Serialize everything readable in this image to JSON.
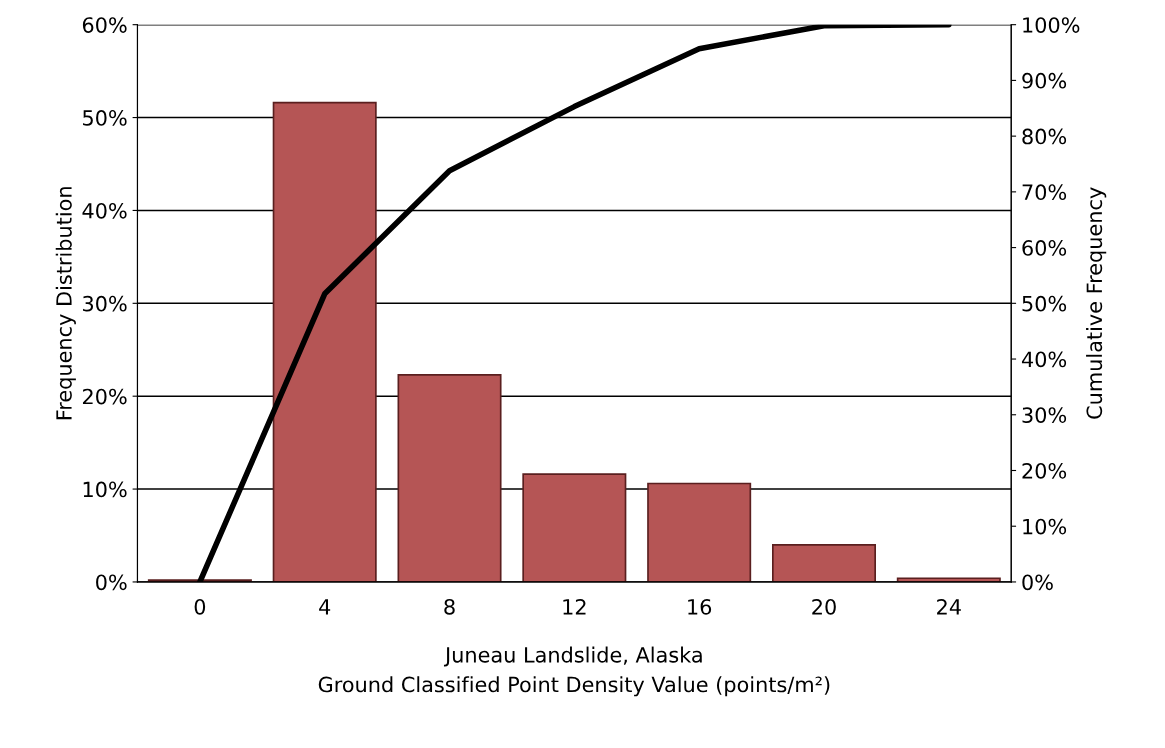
{
  "chart_data": {
    "type": "bar",
    "xlabel": "Juneau Landslide, Alaska\nGround Classified Point Density Value (points/m²)",
    "ylabel": "Frequency Distribution",
    "y2label": "Cumulative Frequency",
    "categories": [
      "0",
      "4",
      "8",
      "12",
      "16",
      "20",
      "24"
    ],
    "series": [
      {
        "color": "#b55555",
        "values": [
          0.2,
          51.6,
          22.3,
          11.6,
          10.6,
          4.0,
          0.4
        ]
      },
      {
        "type": "line",
        "axis": "y2",
        "color": "#000000",
        "values": [
          0,
          51.7,
          73.8,
          85.3,
          95.7,
          99.8,
          100
        ]
      }
    ],
    "ylim": [
      0,
      60
    ],
    "yticks": [
      {
        "value": 0,
        "label": "0%"
      },
      {
        "value": 10,
        "label": "10%"
      },
      {
        "value": 20,
        "label": "20%"
      },
      {
        "value": 30,
        "label": "30%"
      },
      {
        "value": 40,
        "label": "40%"
      },
      {
        "value": 50,
        "label": "50%"
      },
      {
        "value": 60,
        "label": "60%"
      }
    ],
    "y2lim": [
      0,
      100
    ],
    "y2ticks": [
      {
        "value": 0,
        "label": "0%"
      },
      {
        "value": 10,
        "label": "10%"
      },
      {
        "value": 20,
        "label": "20%"
      },
      {
        "value": 30,
        "label": "30%"
      },
      {
        "value": 40,
        "label": "40%"
      },
      {
        "value": 50,
        "label": "50%"
      },
      {
        "value": 60,
        "label": "60%"
      },
      {
        "value": 70,
        "label": "70%"
      },
      {
        "value": 80,
        "label": "80%"
      },
      {
        "value": 90,
        "label": "90%"
      },
      {
        "value": 100,
        "label": "100%"
      }
    ],
    "grid": "y",
    "marker": "none",
    "line_style": "solid"
  }
}
